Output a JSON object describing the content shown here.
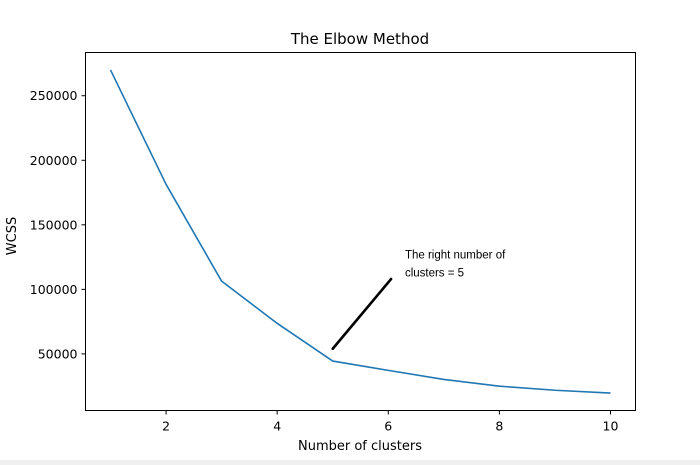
{
  "chart_data": {
    "type": "line",
    "title": "The Elbow Method",
    "xlabel": "Number of clusters",
    "ylabel": "WCSS",
    "x": [
      1,
      2,
      3,
      4,
      5,
      6,
      7,
      8,
      9,
      10
    ],
    "series": [
      {
        "values": [
          269981,
          181363,
          106348,
          73679,
          44448,
          37233,
          30227,
          25011,
          21850,
          19672
        ],
        "color": "#1f77b4"
      }
    ],
    "xlim": [
      0.55,
      10.45
    ],
    "ylim": [
      6155,
      283490
    ],
    "xticks": [
      2,
      4,
      6,
      8,
      10
    ],
    "xtick_labels": [
      "2",
      "4",
      "6",
      "8",
      "10"
    ],
    "yticks": [
      50000,
      100000,
      150000,
      200000,
      250000
    ],
    "ytick_labels": [
      "50000",
      "100000",
      "150000",
      "200000",
      "250000"
    ],
    "grid": false,
    "annotations": [
      {
        "lines": [
          "The right number of",
          "clusters = 5"
        ],
        "stroke_from": [
          5.0,
          54000
        ],
        "stroke_to": [
          6.05,
          108000
        ],
        "text_anchor": [
          6.3,
          124000
        ]
      }
    ]
  }
}
